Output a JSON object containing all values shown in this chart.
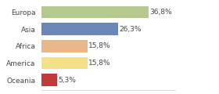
{
  "categories": [
    "Europa",
    "Asia",
    "Africa",
    "America",
    "Oceania"
  ],
  "values": [
    36.8,
    26.3,
    15.8,
    15.8,
    5.3
  ],
  "labels": [
    "36,8%",
    "26,3%",
    "15,8%",
    "15,8%",
    "5,3%"
  ],
  "bar_colors": [
    "#b5c98e",
    "#6b86b8",
    "#e8b88a",
    "#f5e08a",
    "#c0393b"
  ],
  "background_color": "#ffffff",
  "label_fontsize": 6.5,
  "category_fontsize": 6.5,
  "xlim_max": 46
}
